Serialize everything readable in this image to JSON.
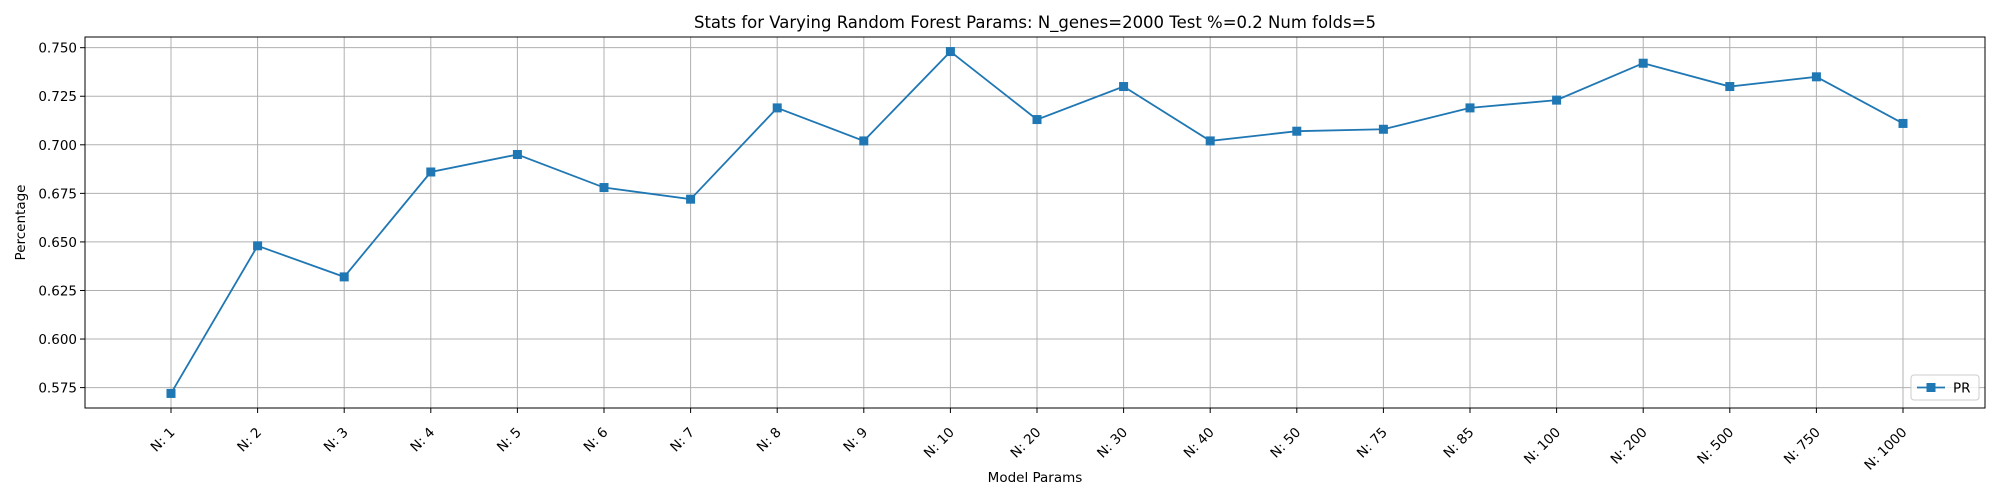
{
  "chart_data": {
    "type": "line",
    "title": "Stats for Varying Random Forest Params: N_genes=2000 Test %=0.2 Num folds=5",
    "xlabel": "Model Params",
    "ylabel": "Percentage",
    "categories": [
      "N: 1",
      "N: 2",
      "N: 3",
      "N: 4",
      "N: 5",
      "N: 6",
      "N: 7",
      "N: 8",
      "N: 9",
      "N: 10",
      "N: 20",
      "N: 30",
      "N: 40",
      "N: 50",
      "N: 75",
      "N: 85",
      "N: 100",
      "N: 200",
      "N: 500",
      "N: 750",
      "N: 1000"
    ],
    "series": [
      {
        "name": "PR",
        "color": "#1f77b4",
        "marker": "square",
        "values": [
          0.572,
          0.648,
          0.632,
          0.686,
          0.695,
          0.678,
          0.672,
          0.719,
          0.702,
          0.748,
          0.713,
          0.73,
          0.702,
          0.707,
          0.708,
          0.719,
          0.723,
          0.742,
          0.73,
          0.735,
          0.711
        ]
      }
    ],
    "ylim": [
      0.5645,
      0.7555
    ],
    "yticks": [
      0.575,
      0.6,
      0.625,
      0.65,
      0.675,
      0.7,
      0.725,
      0.75
    ],
    "ytick_labels": [
      "0.575",
      "0.600",
      "0.625",
      "0.650",
      "0.675",
      "0.700",
      "0.725",
      "0.750"
    ],
    "grid": true,
    "legend_position": "lower right",
    "grid_color": "#b0b0b0"
  }
}
